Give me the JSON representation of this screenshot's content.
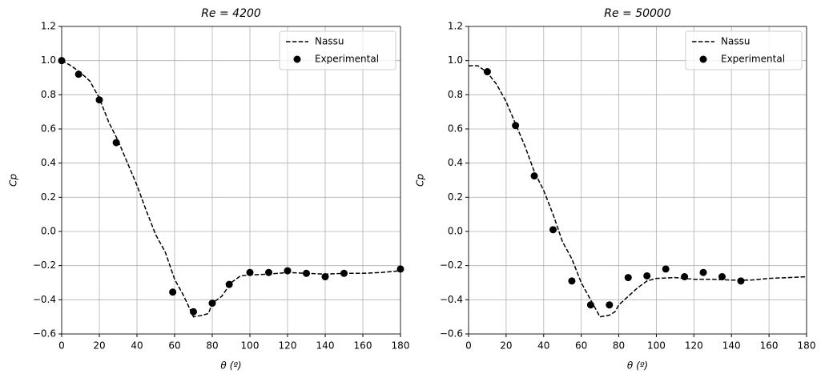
{
  "chart_data": [
    {
      "type": "line",
      "title": "Re = 4200",
      "xlabel": "θ (º)",
      "ylabel": "Cp",
      "xlim": [
        0,
        180
      ],
      "ylim": [
        -0.6,
        1.2
      ],
      "xticks": [
        0,
        20,
        40,
        60,
        80,
        100,
        120,
        140,
        160,
        180
      ],
      "yticks": [
        {
          "value": -0.6,
          "label": "−0.6"
        },
        {
          "value": -0.4,
          "label": "−0.4"
        },
        {
          "value": -0.2,
          "label": "−0.2"
        },
        {
          "value": 0,
          "label": "0.0"
        },
        0.2,
        0.4,
        0.6,
        0.8,
        {
          "value": 1,
          "label": "1.0"
        },
        1.2
      ],
      "grid": true,
      "legend": "upper right",
      "series": [
        {
          "name": "Nassu",
          "kind": "dashed-line",
          "color": "#000000",
          "x": [
            0,
            5,
            10,
            15,
            20,
            25,
            30,
            35,
            40,
            45,
            50,
            55,
            60,
            65,
            70,
            75,
            78,
            80,
            85,
            90,
            95,
            100,
            110,
            120,
            130,
            140,
            150,
            160,
            170,
            180
          ],
          "values": [
            1.0,
            0.97,
            0.93,
            0.88,
            0.78,
            0.64,
            0.53,
            0.4,
            0.27,
            0.12,
            -0.02,
            -0.12,
            -0.28,
            -0.38,
            -0.5,
            -0.49,
            -0.48,
            -0.42,
            -0.38,
            -0.3,
            -0.26,
            -0.255,
            -0.25,
            -0.24,
            -0.245,
            -0.25,
            -0.245,
            -0.245,
            -0.24,
            -0.23
          ]
        },
        {
          "name": "Experimental",
          "kind": "markers",
          "color": "#000000",
          "x": [
            0,
            9,
            20,
            29,
            59,
            70,
            80,
            89,
            100,
            110,
            120,
            130,
            140,
            150,
            180
          ],
          "values": [
            1.0,
            0.92,
            0.77,
            0.52,
            -0.355,
            -0.47,
            -0.42,
            -0.31,
            -0.24,
            -0.24,
            -0.23,
            -0.245,
            -0.265,
            -0.245,
            -0.22
          ]
        }
      ]
    },
    {
      "type": "line",
      "title": "Re = 50000",
      "xlabel": "θ (º)",
      "ylabel": "Cp",
      "xlim": [
        0,
        180
      ],
      "ylim": [
        -0.6,
        1.2
      ],
      "xticks": [
        0,
        20,
        40,
        60,
        80,
        100,
        120,
        140,
        160,
        180
      ],
      "yticks": [
        {
          "value": -0.6,
          "label": "−0.6"
        },
        {
          "value": -0.4,
          "label": "−0.4"
        },
        {
          "value": -0.2,
          "label": "−0.2"
        },
        {
          "value": 0,
          "label": "0.0"
        },
        0.2,
        0.4,
        0.6,
        0.8,
        {
          "value": 1,
          "label": "1.0"
        },
        1.2
      ],
      "grid": true,
      "legend": "upper right",
      "series": [
        {
          "name": "Nassu",
          "kind": "dashed-line",
          "color": "#000000",
          "x": [
            0,
            5,
            10,
            15,
            20,
            25,
            30,
            35,
            40,
            45,
            50,
            55,
            60,
            65,
            70,
            75,
            78,
            80,
            85,
            90,
            95,
            100,
            110,
            120,
            130,
            140,
            150,
            160,
            170,
            180
          ],
          "values": [
            0.97,
            0.97,
            0.93,
            0.86,
            0.76,
            0.63,
            0.5,
            0.35,
            0.24,
            0.1,
            -0.06,
            -0.16,
            -0.3,
            -0.4,
            -0.5,
            -0.49,
            -0.47,
            -0.43,
            -0.38,
            -0.33,
            -0.29,
            -0.275,
            -0.27,
            -0.28,
            -0.28,
            -0.285,
            -0.285,
            -0.275,
            -0.27,
            -0.265
          ]
        },
        {
          "name": "Experimental",
          "kind": "markers",
          "color": "#000000",
          "x": [
            10,
            25,
            35,
            45,
            55,
            65,
            75,
            85,
            95,
            105,
            115,
            125,
            135,
            145
          ],
          "values": [
            0.935,
            0.62,
            0.325,
            0.01,
            -0.29,
            -0.43,
            -0.43,
            -0.27,
            -0.26,
            -0.22,
            -0.265,
            -0.24,
            -0.265,
            -0.29
          ]
        }
      ]
    }
  ]
}
